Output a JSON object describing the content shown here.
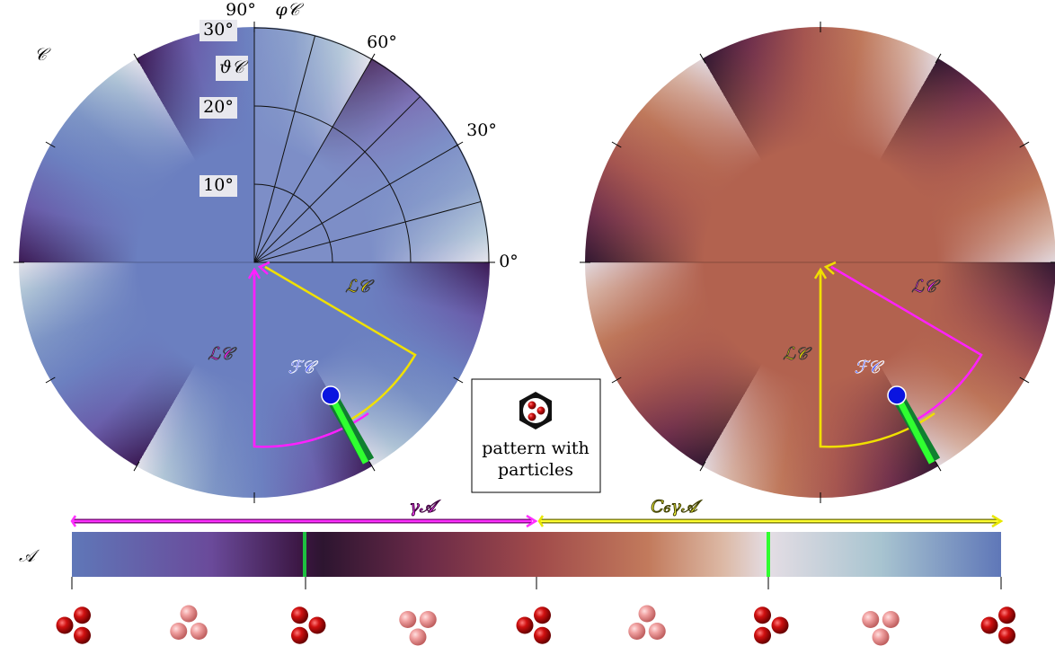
{
  "left_panel": {
    "label": "𝒞",
    "theta_axis_label": "φ𝒞",
    "radius_axis_label": "ϑ𝒞",
    "angle_ticks": [
      "90°",
      "60°",
      "30°",
      "0°"
    ],
    "radius_ticks": [
      "10°",
      "20°",
      "30°"
    ],
    "path_label_yellow": "ℒ𝒞",
    "path_label_magenta": "ℒ𝒞",
    "point_label": "ℱ𝒞"
  },
  "right_panel": {
    "path_label_yellow": "ℒ𝒞",
    "path_label_magenta": "ℒ𝒞",
    "point_label": "ℱ𝒞"
  },
  "inset": {
    "text_lines": [
      "pattern with",
      "particles"
    ]
  },
  "bottom": {
    "label": "𝒜",
    "arrow_labels": [
      "γ𝒜",
      "C₆γ𝒜"
    ]
  }
}
